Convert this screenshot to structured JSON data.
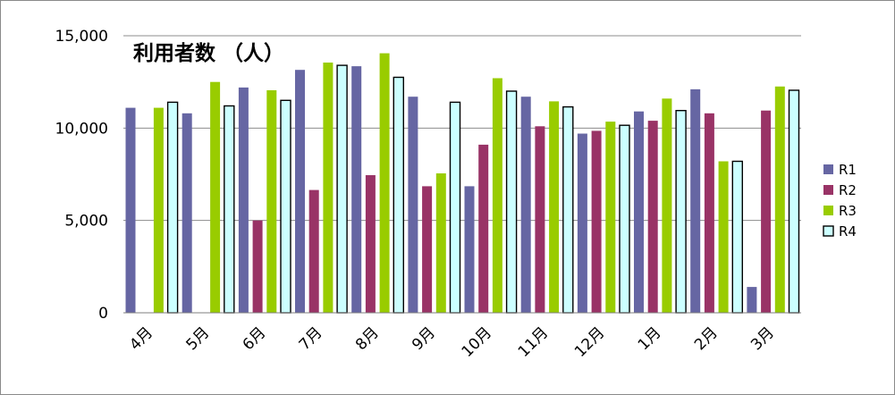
{
  "chart_data": {
    "type": "bar",
    "title": "利用者数 （人）",
    "categories": [
      "4月",
      "5月",
      "6月",
      "7月",
      "8月",
      "9月",
      "10月",
      "11月",
      "12月",
      "1月",
      "2月",
      "3月"
    ],
    "series": [
      {
        "name": "R1",
        "color": "#6666a3",
        "values": [
          11100,
          10800,
          12200,
          13150,
          13350,
          11700,
          6850,
          11700,
          9700,
          10900,
          12100,
          1400
        ]
      },
      {
        "name": "R2",
        "color": "#993366",
        "values": [
          0,
          0,
          5000,
          6650,
          7450,
          6850,
          9100,
          10100,
          9850,
          10400,
          10800,
          10950
        ]
      },
      {
        "name": "R3",
        "color": "#99cc00",
        "values": [
          11100,
          12500,
          12050,
          13550,
          14050,
          7550,
          12700,
          11450,
          10350,
          11600,
          8200,
          12250
        ]
      },
      {
        "name": "R4",
        "color": "#ccffff",
        "values": [
          11400,
          11200,
          11500,
          13400,
          12750,
          11400,
          12000,
          11150,
          10150,
          10950,
          8200,
          12050
        ]
      }
    ],
    "ylim": [
      0,
      15000
    ],
    "yticks": [
      "0",
      "5,000",
      "10,000",
      "15,000"
    ],
    "ytick_values": [
      0,
      5000,
      10000,
      15000
    ],
    "grid": true,
    "legend_position": "right"
  }
}
